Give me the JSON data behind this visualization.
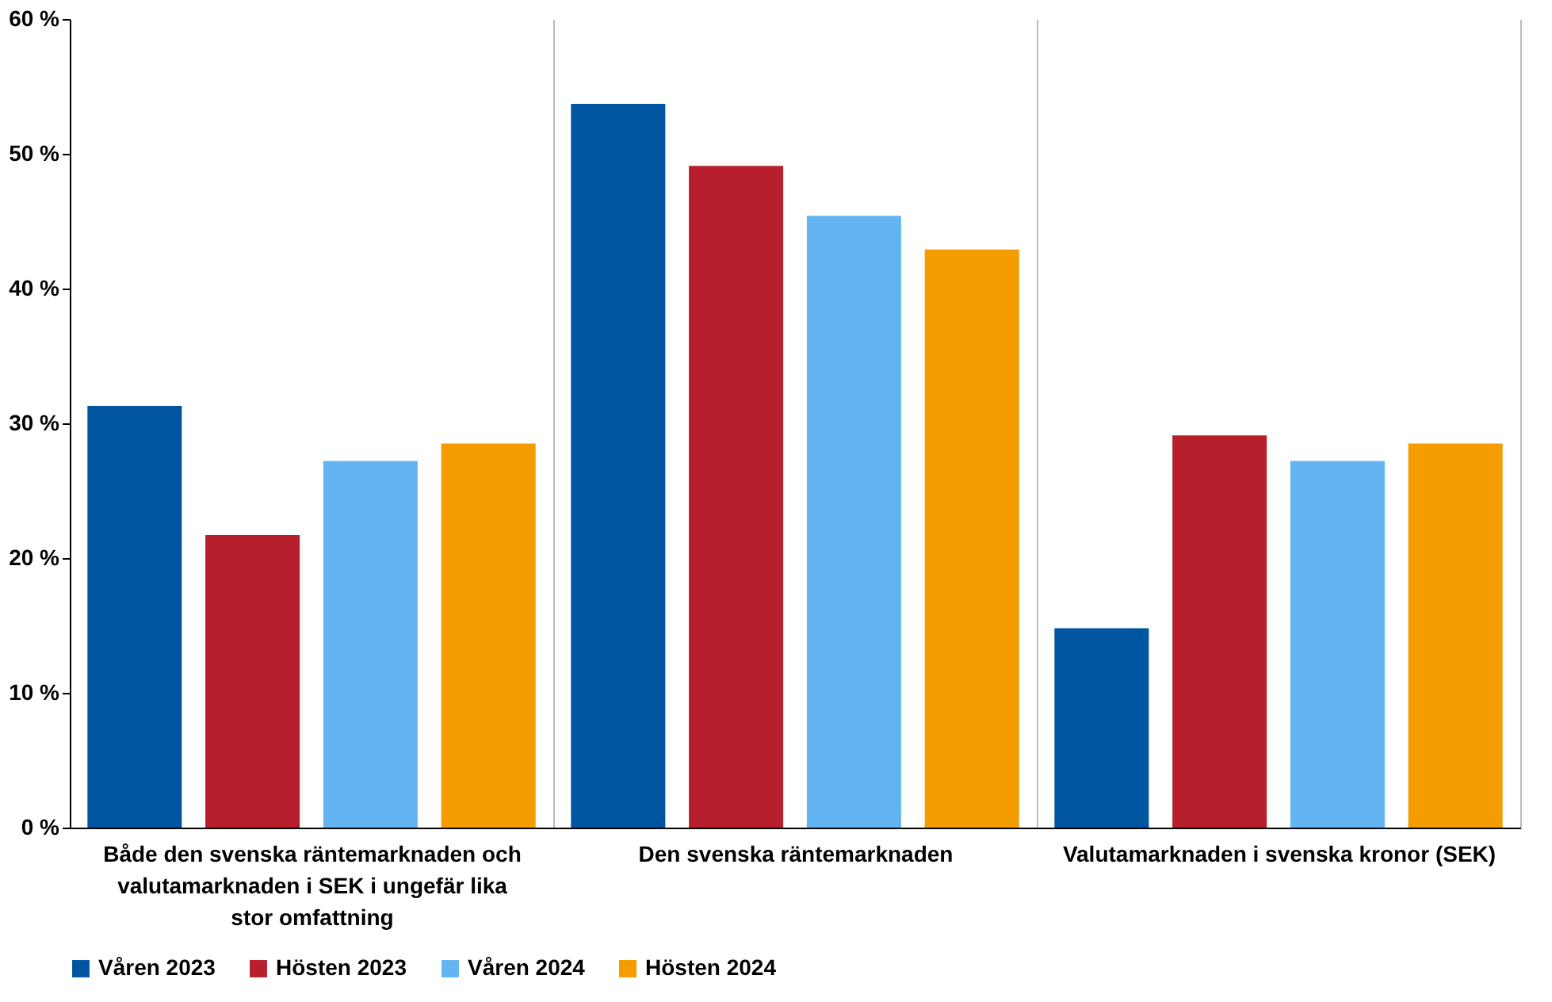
{
  "chart_data": {
    "type": "bar",
    "categories": [
      "Både den svenska räntemarknaden och valutamarknaden i SEK i ungefär lika stor omfattning",
      "Den svenska räntemarknaden",
      "Valutamarknaden i svenska kronor (SEK)"
    ],
    "series": [
      {
        "name": "Våren 2023",
        "color": "#0055a0",
        "values": [
          31.3,
          53.7,
          14.8
        ]
      },
      {
        "name": "Hösten 2023",
        "color": "#b81f2d",
        "values": [
          21.7,
          49.1,
          29.1
        ]
      },
      {
        "name": "Våren 2024",
        "color": "#62b5f2",
        "values": [
          27.2,
          45.4,
          27.2
        ]
      },
      {
        "name": "Hösten 2024",
        "color": "#f59c00",
        "values": [
          28.5,
          42.9,
          28.5
        ]
      }
    ],
    "ylim": [
      0,
      60
    ],
    "yticks": [
      {
        "value": 0,
        "label": "0 %"
      },
      {
        "value": 10,
        "label": "10 %"
      },
      {
        "value": 20,
        "label": "20 %"
      },
      {
        "value": 30,
        "label": "30 %"
      },
      {
        "value": 40,
        "label": "40 %"
      },
      {
        "value": 50,
        "label": "50 %"
      },
      {
        "value": 60,
        "label": "60 %"
      }
    ],
    "grid": "x",
    "legend": "bottom"
  }
}
